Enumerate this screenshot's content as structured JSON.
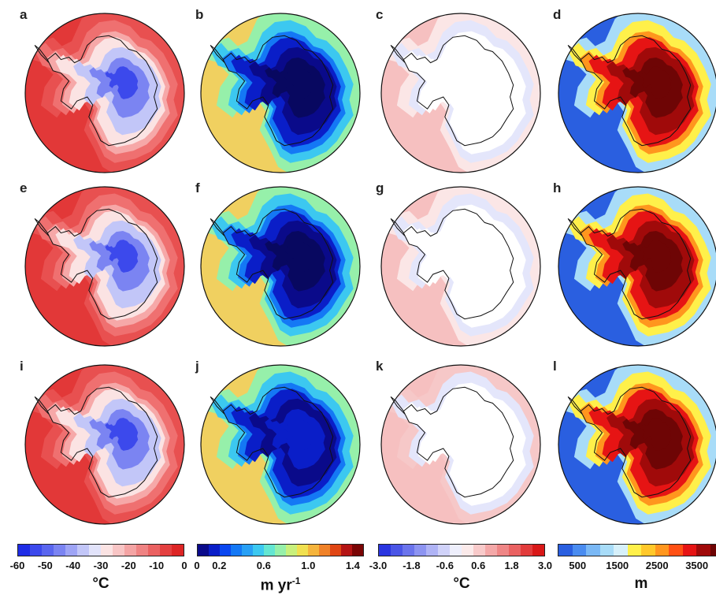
{
  "panels": [
    {
      "letter": "a",
      "variable": "temperature"
    },
    {
      "letter": "b",
      "variable": "precipitation"
    },
    {
      "letter": "c",
      "variable": "temperature-anomaly"
    },
    {
      "letter": "d",
      "variable": "elevation"
    },
    {
      "letter": "e",
      "variable": "temperature"
    },
    {
      "letter": "f",
      "variable": "precipitation"
    },
    {
      "letter": "g",
      "variable": "temperature-anomaly"
    },
    {
      "letter": "h",
      "variable": "elevation"
    },
    {
      "letter": "i",
      "variable": "temperature"
    },
    {
      "letter": "j",
      "variable": "precipitation"
    },
    {
      "letter": "k",
      "variable": "temperature-anomaly"
    },
    {
      "letter": "l",
      "variable": "elevation"
    }
  ],
  "colorbars": [
    {
      "unit": "°C",
      "ticks": [
        "-60",
        "-50",
        "-40",
        "-30",
        "-20",
        "-10",
        "0"
      ],
      "colors": [
        "#1f2de6",
        "#3c49ec",
        "#5a66ef",
        "#7b84f2",
        "#9ea4f5",
        "#c2c6f8",
        "#e2e3fa",
        "#fbe3e3",
        "#f8c5c5",
        "#f4a4a4",
        "#ef8383",
        "#ea6161",
        "#e44040",
        "#dd2525"
      ]
    },
    {
      "unit": "m yr",
      "unit_sup": "-1",
      "ticks": [
        "0",
        "0.2",
        "0.6",
        "1.0",
        "1.4"
      ],
      "colors": [
        "#0a0a8a",
        "#0a1ec8",
        "#0a46f0",
        "#1478f5",
        "#28a0f5",
        "#3cc8f0",
        "#64e6d2",
        "#96f0aa",
        "#c8f07c",
        "#f0e050",
        "#f5b43c",
        "#f08228",
        "#e04614",
        "#b41414",
        "#7a0505"
      ]
    },
    {
      "unit": "°C",
      "ticks": [
        "-3.0",
        "-1.8",
        "-0.6",
        "0.6",
        "1.8",
        "3.0"
      ],
      "colors": [
        "#2a35e0",
        "#4a55e6",
        "#6b74ec",
        "#8d94f1",
        "#afb3f5",
        "#d0d2f9",
        "#eeeffc",
        "#fbeaea",
        "#f8caca",
        "#f4a8a8",
        "#ef8686",
        "#ea6262",
        "#e23c3c",
        "#d91818"
      ]
    },
    {
      "unit": "m",
      "ticks": [
        "500",
        "1500",
        "2500",
        "3500"
      ],
      "colors": [
        "#2a5fe0",
        "#4a8cf0",
        "#7ab8f5",
        "#a8dcf8",
        "#d6f0fa",
        "#fff04a",
        "#ffc82a",
        "#ff961e",
        "#ff5014",
        "#e61414",
        "#a00a0a",
        "#6e0505"
      ]
    }
  ],
  "tick_values": {
    "0": [
      -60,
      -50,
      -40,
      -30,
      -20,
      -10,
      0
    ],
    "1": [
      0,
      0.2,
      0.6,
      1.0,
      1.4
    ],
    "2": [
      -3.0,
      -1.8,
      -0.6,
      0.6,
      1.8,
      3.0
    ],
    "3": [
      500,
      1500,
      2500,
      3500
    ]
  },
  "tick_ranges": {
    "0": [
      -60,
      0
    ],
    "1": [
      0,
      1.5
    ],
    "2": [
      -3.0,
      3.0
    ],
    "3": [
      0,
      4200
    ]
  }
}
